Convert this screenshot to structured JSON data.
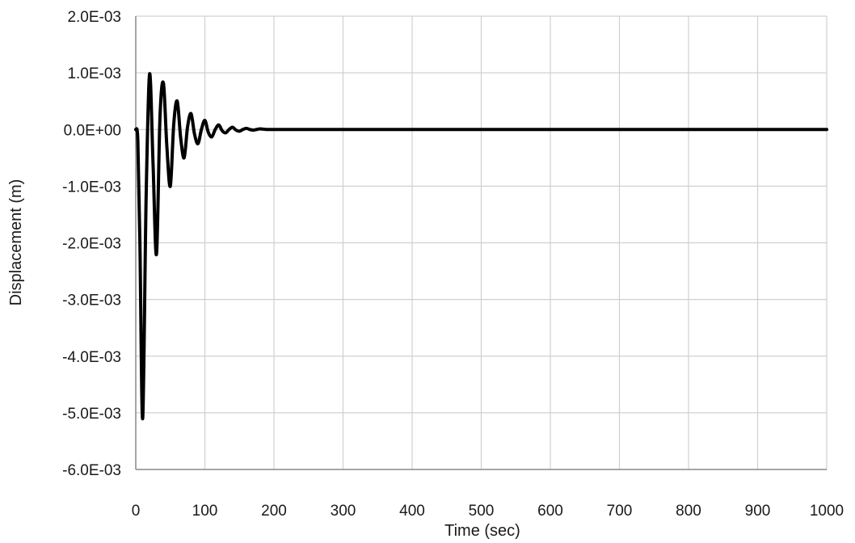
{
  "chart_data": {
    "type": "line",
    "title": "",
    "xlabel": "Time (sec)",
    "ylabel": "Displacement (m)",
    "xlim": [
      0,
      1000
    ],
    "ylim": [
      -0.006,
      0.002
    ],
    "x_ticks": [
      0,
      100,
      200,
      300,
      400,
      500,
      600,
      700,
      800,
      900,
      1000
    ],
    "x_tick_labels": [
      "0",
      "100",
      "200",
      "300",
      "400",
      "500",
      "600",
      "700",
      "800",
      "900",
      "1000"
    ],
    "y_ticks": [
      0.002,
      0.001,
      0.0,
      -0.001,
      -0.002,
      -0.003,
      -0.004,
      -0.005,
      -0.006
    ],
    "y_tick_labels": [
      "2.0E-03",
      "1.0E-03",
      "0.0E+00",
      "-1.0E-03",
      "-2.0E-03",
      "-3.0E-03",
      "-4.0E-03",
      "-5.0E-03",
      "-6.0E-03"
    ],
    "grid": true,
    "legend": "none",
    "line_color": "#000000",
    "grid_color": "#d0d0d0",
    "axis_color": "#8c8c8c",
    "series": [
      {
        "x": [
          0,
          3,
          6,
          10,
          15,
          20,
          25,
          30,
          35,
          40,
          45,
          50,
          55,
          60,
          65,
          70,
          75,
          80,
          85,
          90,
          95,
          100,
          105,
          110,
          115,
          120,
          125,
          130,
          135,
          140,
          145,
          150,
          155,
          160,
          165,
          170,
          175,
          180,
          190,
          200,
          220,
          250,
          300,
          400,
          500,
          600,
          700,
          800,
          900,
          1000
        ],
        "y": [
          0.0,
          -0.0002,
          -0.002,
          -0.0051,
          -0.0012,
          0.00098,
          -0.0006,
          -0.0022,
          0.0002,
          0.00082,
          -0.0003,
          -0.001,
          0.0001,
          0.0005,
          -0.00015,
          -0.0005,
          5e-05,
          0.00028,
          -8e-05,
          -0.00025,
          0.0,
          0.00016,
          -5e-05,
          -0.00013,
          0.0,
          8e-05,
          -2e-05,
          -6e-05,
          0.0,
          4e-05,
          -1e-05,
          -3e-05,
          0.0,
          2e-05,
          0.0,
          -1e-05,
          0.0,
          1e-05,
          0.0,
          0.0,
          0.0,
          0.0,
          0.0,
          0.0,
          0.0,
          0.0,
          0.0,
          0.0,
          0.0,
          0.0
        ]
      }
    ]
  }
}
